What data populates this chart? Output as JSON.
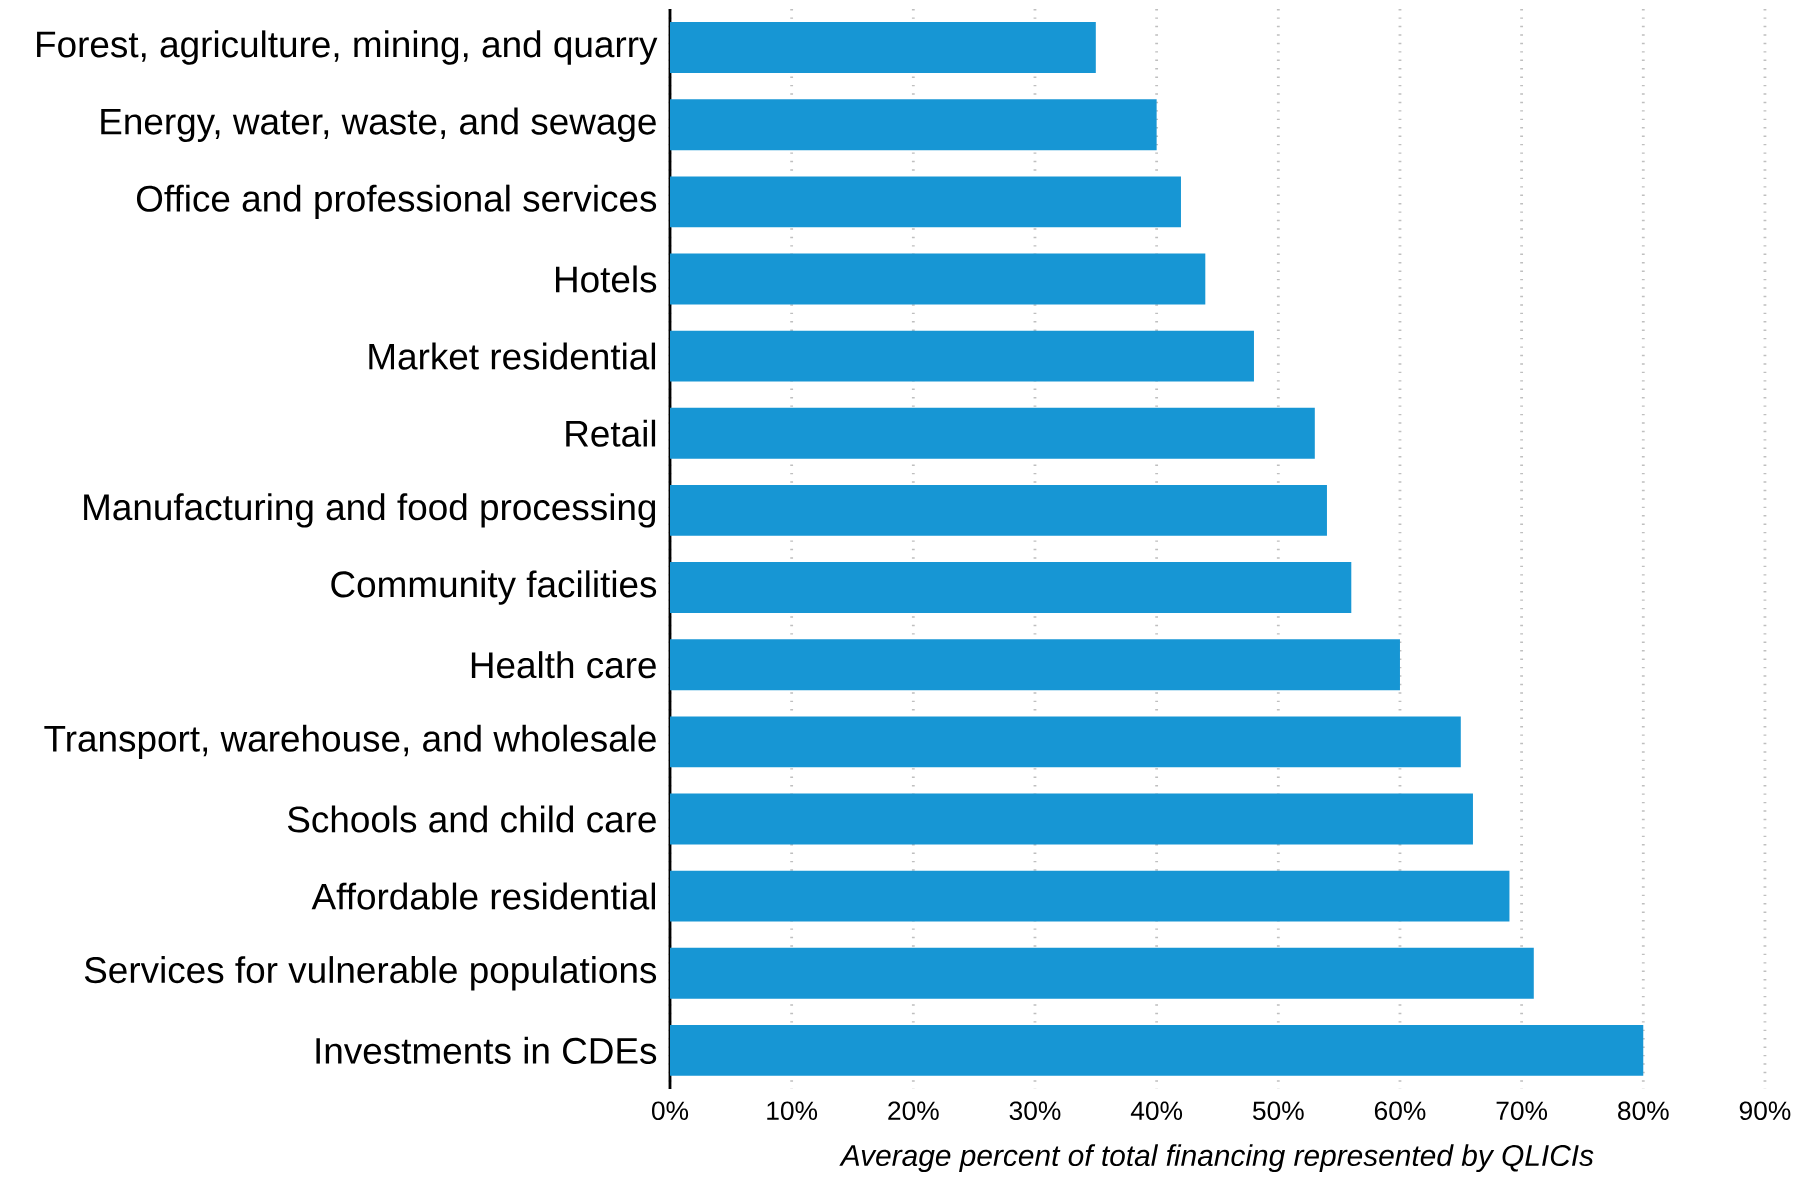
{
  "chart_data": {
    "type": "bar",
    "orientation": "horizontal",
    "categories": [
      "Forest, agriculture, mining, and quarry",
      "Energy, water, waste, and sewage",
      "Office and professional services",
      "Hotels",
      "Market residential",
      "Retail",
      "Manufacturing and food processing",
      "Community facilities",
      "Health care",
      "Transport, warehouse, and wholesale",
      "Schools and child care",
      "Affordable residential",
      "Services for vulnerable populations",
      "Investments in CDEs"
    ],
    "values": [
      35,
      40,
      42,
      44,
      48,
      53,
      54,
      56,
      60,
      65,
      66,
      69,
      71,
      80
    ],
    "color": "#1796d4",
    "xlim": [
      0,
      90
    ],
    "xticks": [
      {
        "value": 0,
        "label": "0%"
      },
      {
        "value": 10,
        "label": "10%"
      },
      {
        "value": 20,
        "label": "20%"
      },
      {
        "value": 30,
        "label": "30%"
      },
      {
        "value": 40,
        "label": "40%"
      },
      {
        "value": 50,
        "label": "50%"
      },
      {
        "value": 60,
        "label": "60%"
      },
      {
        "value": 70,
        "label": "70%"
      },
      {
        "value": 80,
        "label": "80%"
      },
      {
        "value": 90,
        "label": "90%"
      }
    ],
    "xlabel": "Average percent of total financing represented by QLICIs",
    "grid": "x"
  }
}
